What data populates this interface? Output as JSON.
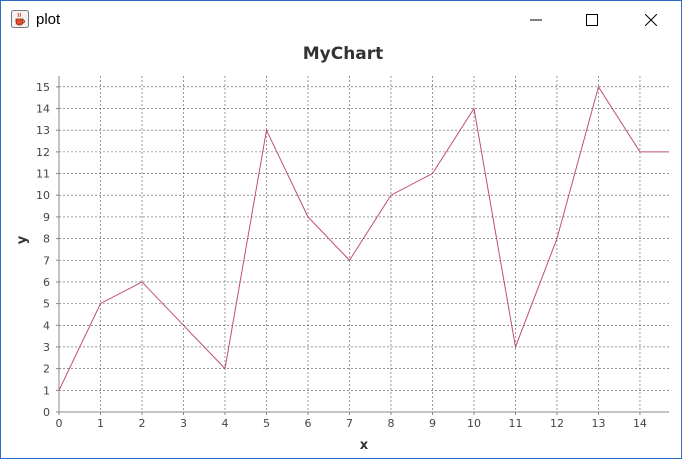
{
  "window": {
    "title": "plot",
    "icon": "java-cup-icon",
    "controls": {
      "minimize": "minimize-icon",
      "maximize": "maximize-icon",
      "close": "close-icon"
    }
  },
  "colors": {
    "series_line": "#c0506a",
    "gridline": "#555555",
    "axis": "#888888",
    "window_border": "#2b6cc4"
  },
  "chart_data": {
    "type": "line",
    "title": "MyChart",
    "xlabel": "x",
    "ylabel": "y",
    "x": [
      0,
      1,
      2,
      3,
      4,
      5,
      6,
      7,
      8,
      9,
      10,
      11,
      12,
      13,
      14,
      14.7
    ],
    "series": [
      {
        "values": [
          1,
          5,
          6,
          4,
          2,
          13,
          9,
          7,
          10,
          11,
          14,
          3,
          8,
          15,
          12,
          12
        ]
      }
    ],
    "x_ticks": [
      "0",
      "1",
      "2",
      "3",
      "4",
      "5",
      "6",
      "7",
      "8",
      "9",
      "10",
      "11",
      "12",
      "13",
      "14"
    ],
    "y_ticks": [
      "0",
      "1",
      "2",
      "3",
      "4",
      "5",
      "6",
      "7",
      "8",
      "9",
      "10",
      "11",
      "12",
      "13",
      "14",
      "15"
    ],
    "xlim": [
      0,
      14.7
    ],
    "ylim": [
      0,
      15.5
    ],
    "grid": true,
    "grid_style": "dashed",
    "legend": "none"
  }
}
